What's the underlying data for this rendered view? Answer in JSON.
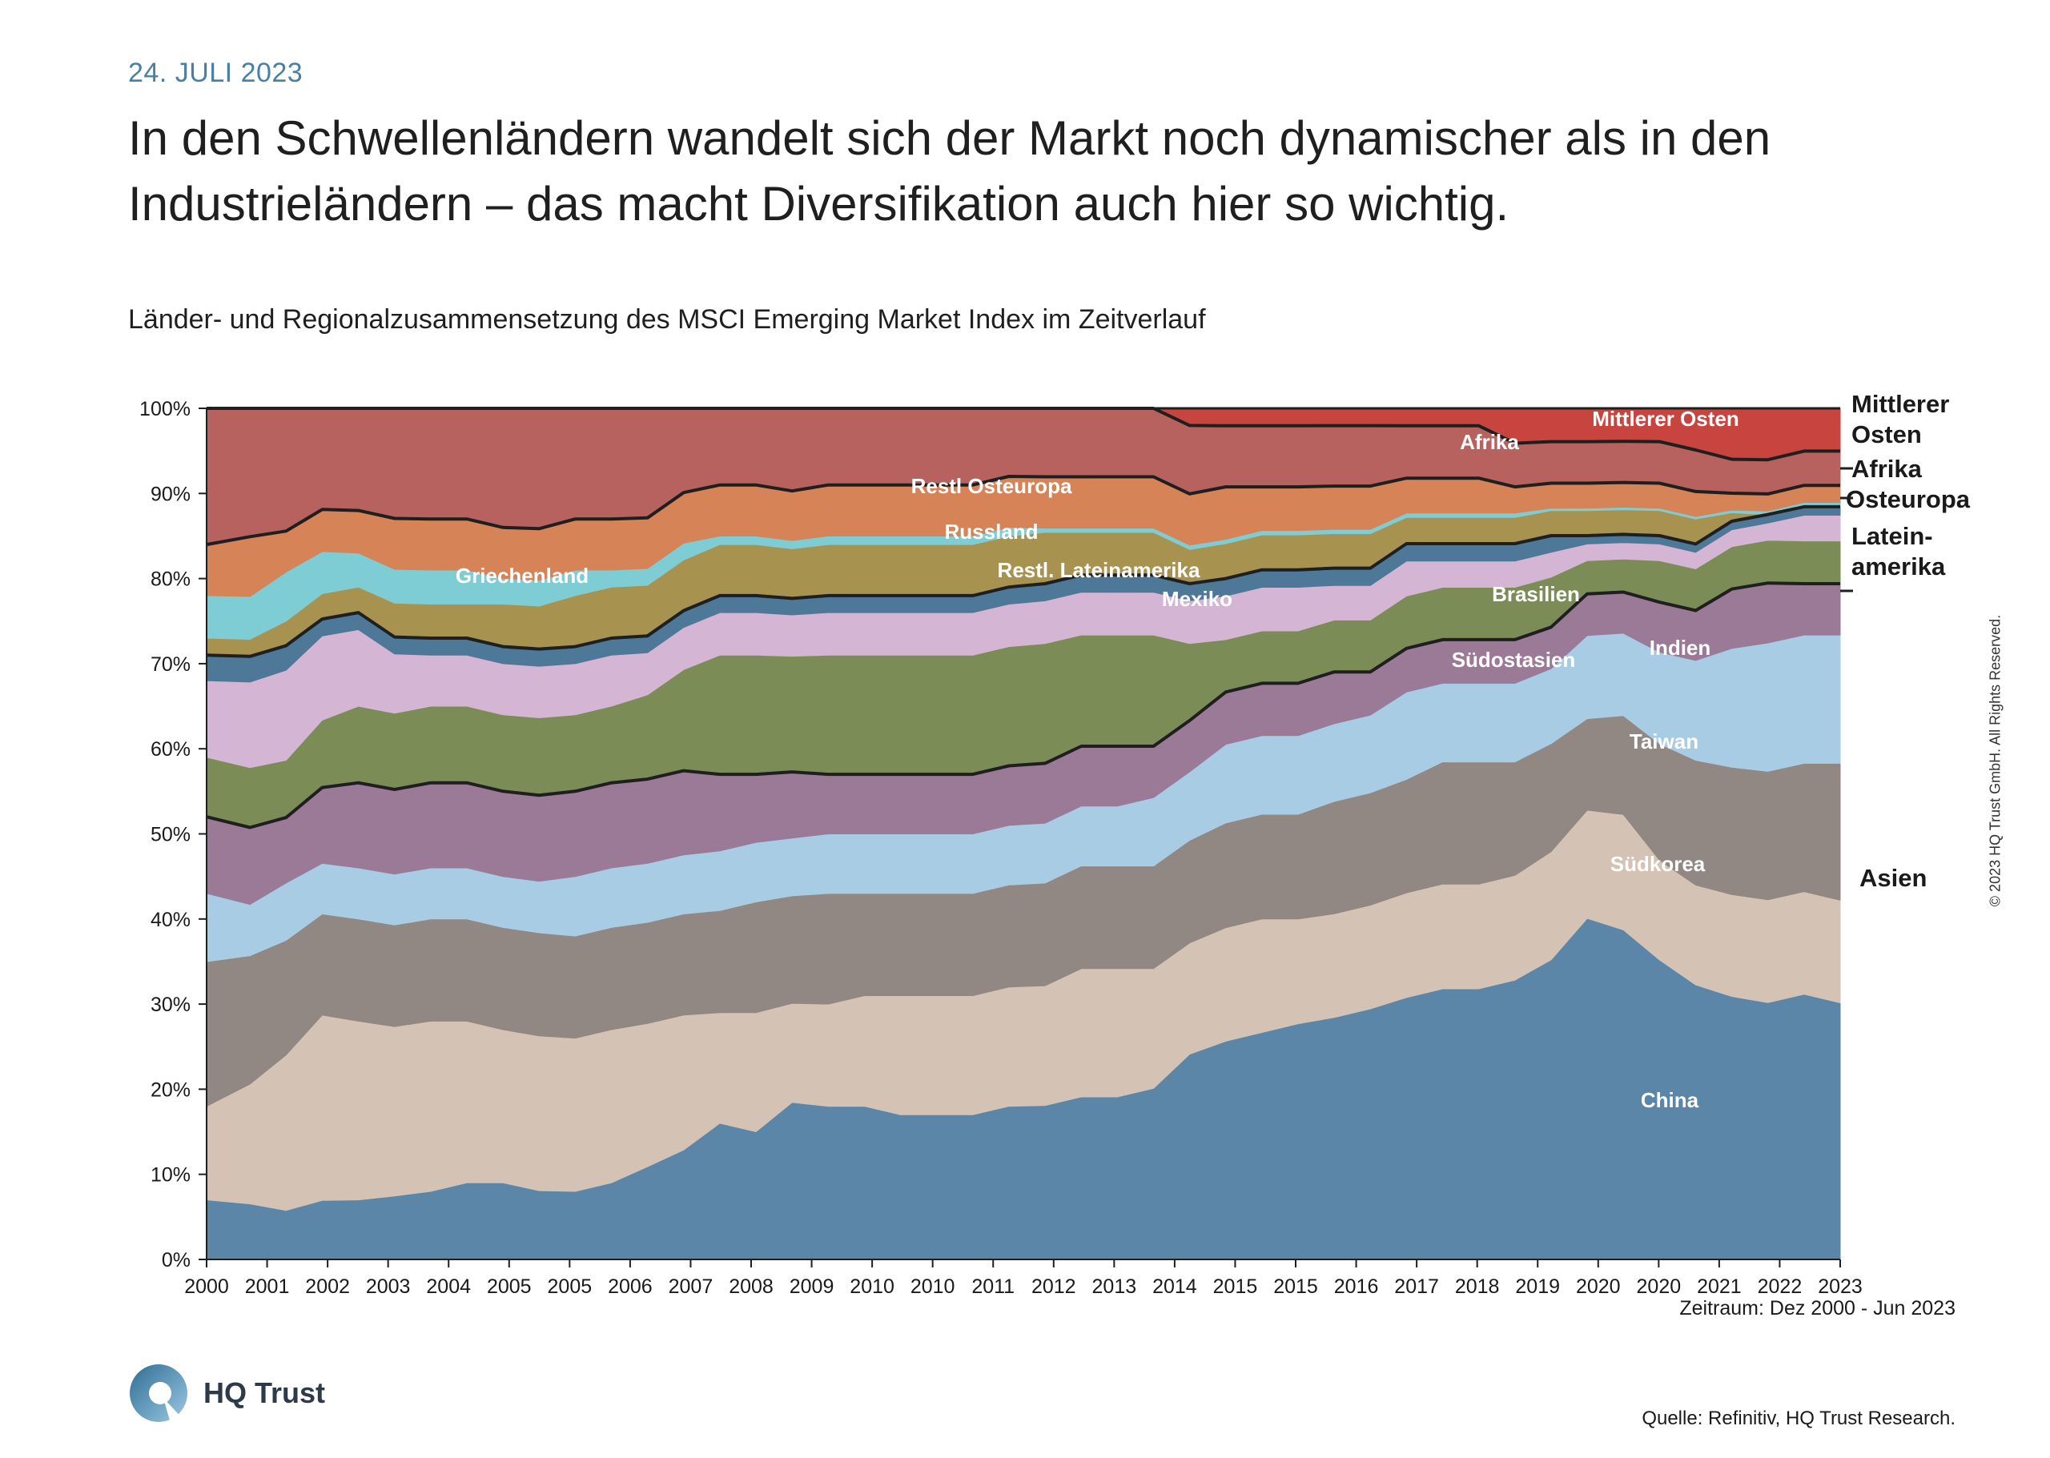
{
  "header": {
    "date": "24. JULI 2023",
    "headline": "In den Schwellenländern wandelt sich der Markt noch dynamischer als in den Industrieländern – das macht Diversifikation auch hier so wichtig.",
    "subtitle": "Länder- und Regionalzusammensetzung des MSCI Emerging Market Index im Zeitverlauf"
  },
  "footer": {
    "period": "Zeitraum: Dez 2000 - Jun 2023",
    "source": "Quelle: Refinitiv, HQ Trust Research.",
    "copyright": "© 2023 HQ Trust GmbH. All Rights Reserved.",
    "logo_text": "HQ Trust"
  },
  "chart_data": {
    "type": "area",
    "stacked": true,
    "ylim": [
      0,
      100
    ],
    "yticks": [
      "0%",
      "10%",
      "20%",
      "30%",
      "40%",
      "50%",
      "60%",
      "70%",
      "80%",
      "90%",
      "100%"
    ],
    "xticks": [
      "2000",
      "2001",
      "2002",
      "2003",
      "2004",
      "2005",
      "2005",
      "2006",
      "2007",
      "2008",
      "2009",
      "2010",
      "2010",
      "2011",
      "2012",
      "2013",
      "2014",
      "2015",
      "2015",
      "2016",
      "2017",
      "2018",
      "2019",
      "2020",
      "2020",
      "2021",
      "2022",
      "2023"
    ],
    "x": [
      2000.9,
      2001.5,
      2002.0,
      2002.5,
      2003.0,
      2003.5,
      2004.0,
      2004.5,
      2005.0,
      2005.5,
      2006.0,
      2006.5,
      2007.0,
      2007.5,
      2008.0,
      2008.5,
      2009.0,
      2009.5,
      2010.0,
      2010.5,
      2011.0,
      2011.5,
      2012.0,
      2012.5,
      2013.0,
      2013.5,
      2014.0,
      2014.5,
      2015.0,
      2015.5,
      2016.0,
      2016.5,
      2017.0,
      2017.5,
      2018.0,
      2018.5,
      2019.0,
      2019.5,
      2020.0,
      2020.5,
      2021.0,
      2021.5,
      2022.0,
      2022.5,
      2023.0,
      2023.5
    ],
    "series": [
      {
        "name": "China",
        "color": "#5b86a8",
        "values": [
          7,
          6.5,
          6,
          7,
          7,
          7.5,
          8,
          9,
          9,
          8,
          8,
          9,
          11,
          13,
          16,
          15,
          19,
          18,
          18,
          17,
          17,
          17,
          18,
          18,
          19,
          19,
          20,
          24,
          25,
          26,
          27,
          28,
          29,
          30,
          31,
          31,
          32,
          36,
          41,
          40,
          36,
          33,
          31,
          30,
          31,
          30
        ]
      },
      {
        "name": "Südkorea",
        "color": "#d4c3b4",
        "values": [
          11,
          14,
          19,
          22,
          21,
          20,
          20,
          19,
          18,
          18,
          18,
          18,
          17,
          16,
          13,
          14,
          12,
          12,
          13,
          14,
          14,
          14,
          14,
          14,
          15,
          15,
          14,
          13,
          13,
          13,
          12,
          12,
          12,
          12,
          12,
          12,
          12,
          13,
          13,
          14,
          12,
          12,
          12,
          12,
          12,
          12
        ]
      },
      {
        "name": "Taiwan",
        "color": "#918783",
        "values": [
          17,
          15,
          14,
          12,
          12,
          12,
          12,
          12,
          12,
          12,
          12,
          12,
          12,
          12,
          12,
          13,
          13,
          13,
          12,
          12,
          12,
          12,
          12,
          12,
          12,
          12,
          12,
          12,
          12,
          12,
          12,
          13,
          13,
          13,
          14,
          14,
          13,
          13,
          11,
          12,
          14,
          15,
          15,
          15,
          15,
          16
        ]
      },
      {
        "name": "Indien",
        "color": "#a8cce4",
        "values": [
          8,
          6,
          7,
          6,
          6,
          6,
          6,
          6,
          6,
          6,
          7,
          7,
          7,
          7,
          7,
          7,
          7,
          7,
          7,
          7,
          7,
          7,
          7,
          7,
          7,
          7,
          8,
          8,
          9,
          9,
          9,
          9,
          9,
          10,
          9,
          9,
          9,
          9,
          10,
          10,
          11,
          12,
          14,
          15,
          15,
          15
        ]
      },
      {
        "name": "Südostasien",
        "color": "#9b7a97",
        "values": [
          9,
          9,
          8,
          9,
          10,
          10,
          10,
          10,
          10,
          10,
          10,
          10,
          10,
          10,
          9,
          8,
          8,
          7,
          7,
          7,
          7,
          7,
          7,
          7,
          7,
          7,
          6,
          6,
          6,
          6,
          6,
          6,
          5,
          5,
          5,
          5,
          5,
          5,
          5,
          5,
          6,
          6,
          7,
          7,
          6,
          6
        ]
      },
      {
        "name": "Brasilien",
        "color": "#7c8c56",
        "values": [
          7,
          7,
          7,
          8,
          9,
          9,
          9,
          9,
          9,
          9,
          9,
          9,
          10,
          12,
          14,
          14,
          14,
          14,
          14,
          14,
          14,
          14,
          14,
          14,
          13,
          13,
          13,
          9,
          6,
          6,
          6,
          6,
          6,
          6,
          6,
          6,
          6,
          6,
          4,
          4,
          5,
          5,
          5,
          5,
          5,
          5
        ]
      },
      {
        "name": "Mexiko",
        "color": "#d4b5d3",
        "values": [
          9,
          10,
          11,
          10,
          9,
          7,
          6,
          6,
          6,
          6,
          6,
          6,
          5,
          5,
          5,
          5,
          5,
          5,
          5,
          5,
          5,
          5,
          5,
          5,
          5,
          5,
          5,
          5,
          5,
          5,
          5,
          4,
          4,
          4,
          3,
          3,
          3,
          3,
          2,
          2,
          2,
          2,
          2,
          2,
          3,
          3
        ]
      },
      {
        "name": "Restl. Lateinamerika",
        "color": "#4d7898",
        "values": [
          3,
          3,
          3,
          2,
          2,
          2,
          2,
          2,
          2,
          2,
          2,
          2,
          2,
          2,
          2,
          2,
          2,
          2,
          2,
          2,
          2,
          2,
          2,
          2,
          2,
          2,
          2,
          2,
          2,
          2,
          2,
          2,
          2,
          2,
          2,
          2,
          2,
          2,
          1,
          1,
          1,
          1,
          1,
          1,
          1,
          1
        ]
      },
      {
        "name": "Russland",
        "color": "#a8924f",
        "values": [
          2,
          2,
          3,
          3,
          3,
          4,
          4,
          4,
          5,
          5,
          6,
          6,
          6,
          6,
          6,
          6,
          6,
          6,
          6,
          6,
          6,
          6,
          6,
          6,
          5,
          5,
          5,
          4,
          4,
          4,
          4,
          4,
          4,
          3,
          3,
          3,
          3,
          3,
          3,
          3,
          3,
          3,
          1,
          0,
          0,
          0
        ]
      },
      {
        "name": "Griechenland",
        "color": "#7fcdd4",
        "values": [
          5,
          5,
          6,
          5,
          4,
          4,
          4,
          4,
          3,
          3,
          3,
          2,
          2,
          2,
          1,
          1,
          1,
          1,
          1,
          1,
          1,
          1,
          1,
          0.5,
          0.5,
          0.5,
          0.5,
          0.5,
          0.5,
          0.5,
          0.5,
          0.5,
          0.5,
          0.5,
          0.5,
          0.5,
          0.5,
          0.3,
          0.3,
          0.3,
          0.3,
          0.3,
          0.3,
          0.4,
          0.5,
          0.5
        ]
      },
      {
        "name": "Restl Osteuropa",
        "color": "#d68357",
        "values": [
          6,
          7,
          5,
          5,
          5,
          6,
          6,
          6,
          6,
          6,
          6,
          6,
          6,
          6,
          6,
          6,
          6,
          6,
          6,
          6,
          6,
          6,
          6,
          6,
          6,
          6,
          6,
          6,
          6,
          5,
          5,
          5,
          5,
          4,
          4,
          4,
          3,
          3,
          3,
          3,
          3,
          3,
          2,
          2,
          2,
          2
        ]
      },
      {
        "name": "Afrika",
        "color": "#b8625f",
        "values": [
          16,
          15,
          15,
          12,
          12,
          13,
          13,
          13,
          14,
          14,
          13,
          13,
          13,
          10,
          9,
          9,
          10,
          9,
          9,
          9,
          9,
          9,
          8,
          8,
          8,
          8,
          8,
          8,
          7,
          7,
          7,
          7,
          7,
          6,
          6,
          6,
          5,
          5,
          5,
          5,
          5,
          5,
          4,
          4,
          4,
          4
        ]
      },
      {
        "name": "Mittlerer Osten",
        "color": "#c8443f",
        "values": [
          0,
          0,
          0,
          0,
          0,
          0,
          0,
          0,
          0,
          0,
          0,
          0,
          0,
          0,
          0,
          0,
          0,
          0,
          0,
          0,
          0,
          0,
          0,
          0,
          0,
          0,
          0,
          2,
          2,
          2,
          2,
          2,
          2,
          2,
          2,
          2,
          4,
          4,
          4,
          4,
          4,
          5,
          6,
          6,
          5,
          5
        ]
      }
    ],
    "area_labels": [
      {
        "series": "China",
        "text": "China"
      },
      {
        "series": "Südkorea",
        "text": "Südkorea"
      },
      {
        "series": "Taiwan",
        "text": "Taiwan"
      },
      {
        "series": "Indien",
        "text": "Indien"
      },
      {
        "series": "Südostasien",
        "text": "Südostasien"
      },
      {
        "series": "Brasilien",
        "text": "Brasilien"
      },
      {
        "series": "Mexiko",
        "text": "Mexiko"
      },
      {
        "series": "Restl. Lateinamerika",
        "text": "Restl. Lateinamerika"
      },
      {
        "series": "Russland",
        "text": "Russland"
      },
      {
        "series": "Griechenland",
        "text": "Griechenland"
      },
      {
        "series": "Restl Osteuropa",
        "text": "Restl Osteuropa"
      },
      {
        "series": "Afrika",
        "text": "Afrika"
      },
      {
        "series": "Mittlerer Osten",
        "text": "Mittlerer Osten"
      }
    ],
    "region_labels": [
      {
        "text": "Mittlerer Osten"
      },
      {
        "text": "Afrika"
      },
      {
        "text": "Osteuropa"
      },
      {
        "text": "Latein-amerika"
      },
      {
        "text": "Asien"
      }
    ],
    "region_boundaries_after_series": [
      "Südostasien",
      "Restl. Lateinamerika",
      "Restl Osteuropa",
      "Afrika"
    ]
  }
}
